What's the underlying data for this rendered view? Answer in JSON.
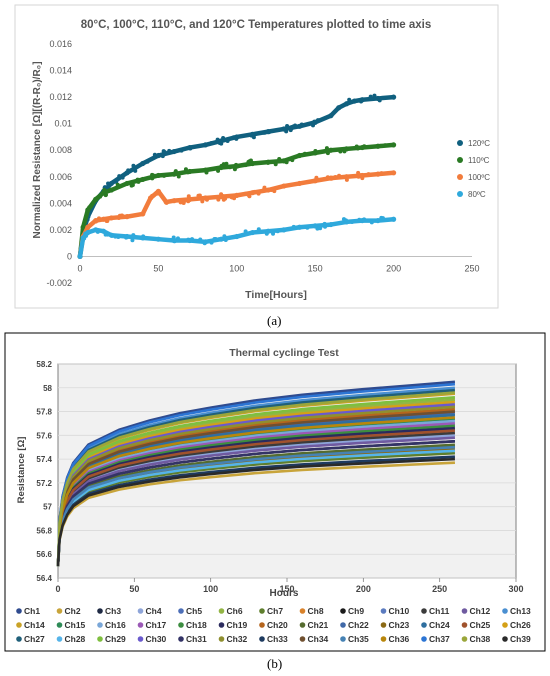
{
  "panels": {
    "a_caption": "(a)",
    "b_caption": "(b)"
  },
  "chart_data": [
    {
      "type": "scatter",
      "title": "80°C, 100°C, 110°C, and 120°C Temperatures plotted to time axis",
      "xlabel": "Time[Hours]",
      "ylabel": "Normalized Resistance [Ω][(R-R₀)/R₀]",
      "xlim": [
        0,
        250
      ],
      "ylim": [
        -0.002,
        0.016
      ],
      "xticks": [
        "0",
        "50",
        "100",
        "150",
        "200",
        "250"
      ],
      "yticks": [
        "-0.002",
        "0",
        "0.002",
        "0.004",
        "0.006",
        "0.008",
        "0.01",
        "0.012",
        "0.014",
        "0.016"
      ],
      "grid": false,
      "legend": "right",
      "series": [
        {
          "name": "120ºC",
          "color": "#10607f",
          "x": [
            0,
            2,
            5,
            10,
            15,
            20,
            30,
            40,
            50,
            60,
            70,
            80,
            90,
            100,
            110,
            120,
            130,
            135,
            140,
            150,
            160,
            165,
            170,
            175,
            180,
            190,
            200
          ],
          "y": [
            0,
            0.0018,
            0.003,
            0.0042,
            0.0049,
            0.0055,
            0.0063,
            0.007,
            0.0076,
            0.0079,
            0.0082,
            0.0084,
            0.0087,
            0.009,
            0.0092,
            0.0094,
            0.0096,
            0.0097,
            0.0098,
            0.0101,
            0.0106,
            0.0112,
            0.0115,
            0.0117,
            0.0118,
            0.0119,
            0.012
          ]
        },
        {
          "name": "110ºC",
          "color": "#2a7a24",
          "x": [
            0,
            2,
            5,
            10,
            15,
            20,
            30,
            40,
            50,
            60,
            70,
            80,
            90,
            100,
            110,
            120,
            130,
            140,
            150,
            160,
            170,
            180,
            190,
            200
          ],
          "y": [
            0,
            0.0022,
            0.0035,
            0.0043,
            0.0048,
            0.005,
            0.0055,
            0.0058,
            0.0061,
            0.0062,
            0.0064,
            0.0065,
            0.0067,
            0.0068,
            0.007,
            0.0071,
            0.0072,
            0.0076,
            0.0078,
            0.008,
            0.0081,
            0.0082,
            0.0083,
            0.0084
          ]
        },
        {
          "name": "100ºC",
          "color": "#f27c3c",
          "x": [
            0,
            2,
            5,
            10,
            15,
            20,
            30,
            40,
            45,
            50,
            55,
            60,
            70,
            80,
            90,
            100,
            110,
            120,
            130,
            140,
            150,
            160,
            170,
            180,
            190,
            200
          ],
          "y": [
            0,
            0.0015,
            0.0022,
            0.0027,
            0.0028,
            0.0029,
            0.003,
            0.0032,
            0.0044,
            0.0049,
            0.0041,
            0.0042,
            0.0043,
            0.0044,
            0.0045,
            0.0046,
            0.0048,
            0.005,
            0.0053,
            0.0055,
            0.0057,
            0.0059,
            0.006,
            0.0061,
            0.0062,
            0.0063
          ]
        },
        {
          "name": "80ºC",
          "color": "#2fa9dc",
          "x": [
            0,
            2,
            5,
            10,
            15,
            20,
            30,
            40,
            50,
            60,
            70,
            80,
            90,
            100,
            110,
            120,
            130,
            140,
            150,
            160,
            170,
            180,
            190,
            200
          ],
          "y": [
            0,
            0.0014,
            0.0018,
            0.002,
            0.0019,
            0.0016,
            0.0015,
            0.0014,
            0.0013,
            0.0012,
            0.0012,
            0.0011,
            0.0013,
            0.0015,
            0.0018,
            0.0019,
            0.002,
            0.0022,
            0.0023,
            0.0024,
            0.0026,
            0.0027,
            0.0027,
            0.0028
          ]
        }
      ]
    },
    {
      "type": "line",
      "title": "Thermal cyclinge Test",
      "xlabel": "Hours",
      "ylabel": "Resistance [Ω]",
      "xlim": [
        0,
        300
      ],
      "ylim": [
        56.4,
        58.2
      ],
      "xticks": [
        "0",
        "50",
        "100",
        "150",
        "200",
        "250",
        "300"
      ],
      "yticks": [
        "56.4",
        "56.6",
        "56.8",
        "57",
        "57.2",
        "57.4",
        "57.6",
        "57.8",
        "58",
        "58.2"
      ],
      "grid": true,
      "legend": "bottom",
      "channels": {
        "names": [
          "Ch1",
          "Ch2",
          "Ch3",
          "Ch4",
          "Ch5",
          "Ch6",
          "Ch7",
          "Ch8",
          "Ch9",
          "Ch10",
          "Ch11",
          "Ch12",
          "Ch13",
          "Ch14",
          "Ch15",
          "Ch16",
          "Ch17",
          "Ch18",
          "Ch19",
          "Ch20",
          "Ch21",
          "Ch22",
          "Ch23",
          "Ch24",
          "Ch25",
          "Ch26",
          "Ch27",
          "Ch28",
          "Ch29",
          "Ch30",
          "Ch31",
          "Ch32",
          "Ch33",
          "Ch34",
          "Ch35",
          "Ch36",
          "Ch37",
          "Ch38",
          "Ch39"
        ],
        "colors": [
          "#2f4b8f",
          "#c8a43a",
          "#1f2a44",
          "#8ea5d9",
          "#4d6fb8",
          "#93b545",
          "#5f7f2e",
          "#d9822b",
          "#1a1a1a",
          "#5b7bbf",
          "#3b3b3b",
          "#6f5aa0",
          "#4a8fd1",
          "#c9a227",
          "#2e8b57",
          "#7aa7d8",
          "#9b59b6",
          "#3c8d40",
          "#2b2b5e",
          "#b5651d",
          "#556b2f",
          "#4169a8",
          "#8b6914",
          "#2f6f9f",
          "#a0522d",
          "#d4a017",
          "#20607a",
          "#56b4e9",
          "#7fbf3f",
          "#6a5acd",
          "#333366",
          "#8f8f2f",
          "#1e3a5f",
          "#705030",
          "#4682b4",
          "#b8860b",
          "#2c75d4",
          "#9aa63a",
          "#2a2a2a"
        ],
        "x": [
          0,
          1,
          3,
          6,
          10,
          20,
          40,
          60,
          80,
          100,
          130,
          160,
          200,
          230,
          260
        ],
        "start_value": 56.5,
        "end_values": [
          58.05,
          57.37,
          57.55,
          57.6,
          57.8,
          57.9,
          57.45,
          57.85,
          57.5,
          57.65,
          57.62,
          57.58,
          58.0,
          57.95,
          57.74,
          57.72,
          57.7,
          57.68,
          57.66,
          57.82,
          57.52,
          57.78,
          57.48,
          57.77,
          57.64,
          57.88,
          57.98,
          57.47,
          57.92,
          57.86,
          57.55,
          57.84,
          57.42,
          57.8,
          57.5,
          57.75,
          58.03,
          57.96,
          57.4
        ]
      }
    }
  ]
}
